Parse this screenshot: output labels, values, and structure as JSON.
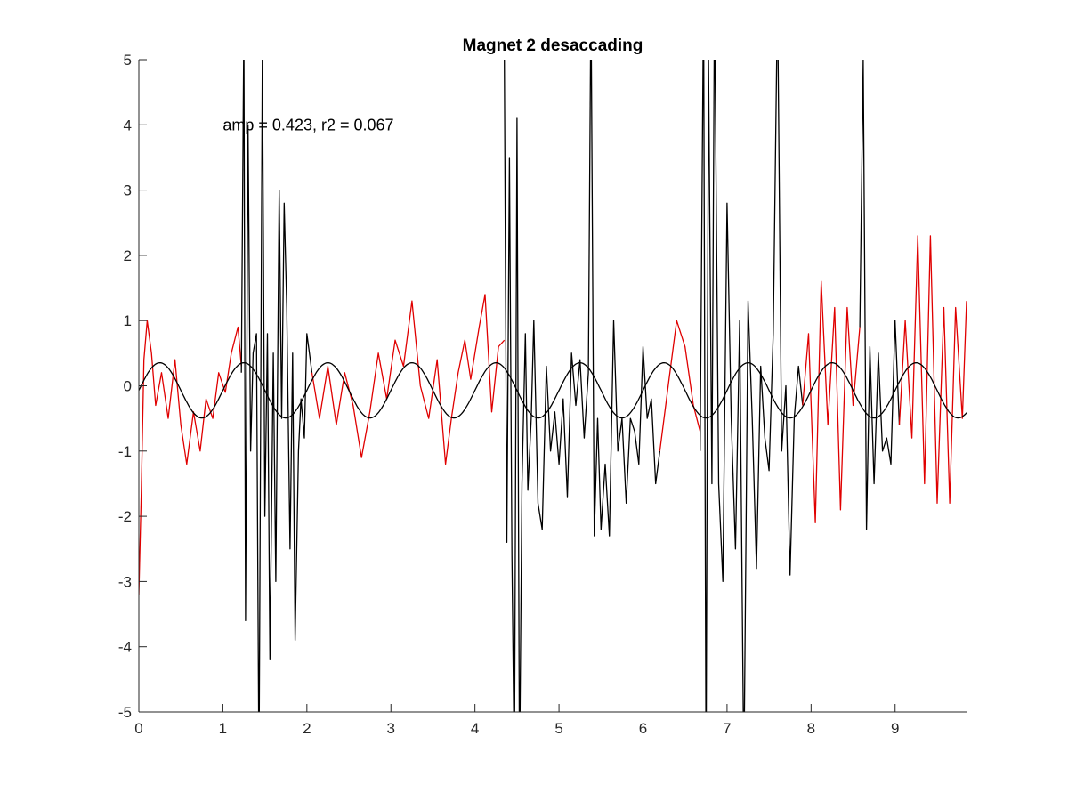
{
  "chart_data": {
    "type": "line",
    "title": "Magnet 2 desaccading",
    "xlabel": "",
    "ylabel": "",
    "xlim": [
      0,
      9.85
    ],
    "ylim": [
      -5,
      5
    ],
    "xticks": [
      "0",
      "1",
      "2",
      "3",
      "4",
      "5",
      "6",
      "7",
      "8",
      "9"
    ],
    "yticks": [
      "-5",
      "-4",
      "-3",
      "-2",
      "-1",
      "0",
      "1",
      "2",
      "3",
      "4",
      "5"
    ],
    "grid": false,
    "annotation": {
      "text": "amp = 0.423, r2 = 0.067",
      "x": 1.0,
      "y": 4.0
    },
    "colors": {
      "red": "#e00000",
      "black": "#000000",
      "fit": "#000000",
      "axis": "#262626"
    },
    "fit": {
      "amplitude": 0.423,
      "offset": -0.07,
      "period": 1.0,
      "phase": 0.0
    },
    "series": [
      {
        "color": "#e00000",
        "x": [
          0.0,
          0.03,
          0.06,
          0.1,
          0.15,
          0.2,
          0.27,
          0.35,
          0.43,
          0.5,
          0.57,
          0.65,
          0.73,
          0.8,
          0.88,
          0.95,
          1.03,
          1.1,
          1.18,
          1.22
        ],
        "y": [
          -3.2,
          -1.6,
          0.4,
          1.0,
          0.5,
          -0.3,
          0.2,
          -0.5,
          0.4,
          -0.6,
          -1.2,
          -0.4,
          -1.0,
          -0.2,
          -0.5,
          0.2,
          -0.1,
          0.5,
          0.9,
          0.3
        ]
      },
      {
        "color": "#000000",
        "x": [
          1.22,
          1.25,
          1.27,
          1.3,
          1.33,
          1.36,
          1.4,
          1.43,
          1.47,
          1.5,
          1.53,
          1.56,
          1.6,
          1.63,
          1.67,
          1.7,
          1.73,
          1.76,
          1.8,
          1.83,
          1.86,
          1.9,
          1.93,
          1.97,
          2.0,
          2.03,
          2.06
        ],
        "y": [
          0.2,
          5.5,
          -3.6,
          4.0,
          -1.0,
          0.5,
          0.8,
          -6.0,
          5.2,
          -2.0,
          0.8,
          -4.2,
          0.5,
          -3.0,
          3.0,
          -0.5,
          2.8,
          1.2,
          -2.5,
          0.5,
          -3.9,
          -1.0,
          -0.2,
          -0.8,
          0.8,
          0.5,
          0.2
        ]
      },
      {
        "color": "#e00000",
        "x": [
          2.06,
          2.15,
          2.25,
          2.35,
          2.45,
          2.55,
          2.65,
          2.75,
          2.85,
          2.95,
          3.05,
          3.15,
          3.25,
          3.35,
          3.45,
          3.55,
          3.65,
          3.72,
          3.8,
          3.88,
          3.95,
          4.05,
          4.12,
          4.2,
          4.28,
          4.35
        ],
        "y": [
          0.2,
          -0.5,
          0.3,
          -0.6,
          0.2,
          -0.3,
          -1.1,
          -0.4,
          0.5,
          -0.2,
          0.7,
          0.3,
          1.3,
          0.0,
          -0.5,
          0.4,
          -1.2,
          -0.5,
          0.2,
          0.7,
          0.1,
          0.9,
          1.4,
          -0.4,
          0.6,
          0.7
        ]
      },
      {
        "color": "#000000",
        "x": [
          4.35,
          4.38,
          4.41,
          4.44,
          4.47,
          4.5,
          4.53,
          4.56,
          4.6,
          4.63,
          4.67,
          4.7,
          4.75,
          4.8,
          4.85,
          4.9,
          4.95,
          5.0,
          5.05,
          5.1,
          5.15,
          5.2,
          5.25,
          5.3,
          5.35,
          5.38,
          5.42,
          5.46,
          5.5,
          5.55,
          5.6,
          5.65,
          5.7,
          5.75,
          5.8,
          5.85,
          5.9,
          5.95,
          6.0,
          6.05,
          6.1,
          6.15,
          6.2
        ],
        "y": [
          5.0,
          -2.4,
          3.5,
          -2.6,
          -6.0,
          4.1,
          -6.0,
          -1.5,
          0.8,
          -1.6,
          -0.5,
          1.0,
          -1.8,
          -2.2,
          0.3,
          -1.0,
          -0.4,
          -1.2,
          -0.2,
          -1.7,
          0.5,
          -0.3,
          0.4,
          -0.8,
          0.2,
          6.0,
          -2.3,
          -0.5,
          -2.2,
          -1.2,
          -2.3,
          1.0,
          -1.0,
          -0.5,
          -1.8,
          -0.5,
          -0.7,
          -1.2,
          0.6,
          -0.5,
          -0.2,
          -1.5,
          -1.0
        ]
      },
      {
        "color": "#e00000",
        "x": [
          6.2,
          6.3,
          6.4,
          6.5,
          6.6,
          6.68
        ],
        "y": [
          -1.0,
          0.0,
          1.0,
          0.6,
          -0.3,
          -0.7
        ]
      },
      {
        "color": "#000000",
        "x": [
          6.68,
          6.72,
          6.75,
          6.78,
          6.82,
          6.85,
          6.9,
          6.95,
          7.0,
          7.05,
          7.1,
          7.15,
          7.2,
          7.25,
          7.3,
          7.35,
          7.4,
          7.45,
          7.5,
          7.55,
          7.6,
          7.65,
          7.7,
          7.75,
          7.8,
          7.85,
          7.9
        ],
        "y": [
          -1.0,
          6.0,
          -6.0,
          5.0,
          -1.5,
          6.0,
          -1.5,
          -3.0,
          2.8,
          -0.5,
          -2.5,
          1.0,
          -6.0,
          1.3,
          -0.5,
          -2.8,
          0.3,
          -0.8,
          -1.3,
          0.8,
          6.0,
          -1.0,
          0.0,
          -2.9,
          -0.5,
          0.3,
          -0.3
        ]
      },
      {
        "color": "#e00000",
        "x": [
          7.9,
          7.97,
          8.05,
          8.12,
          8.2,
          8.28,
          8.35,
          8.43,
          8.5,
          8.58
        ],
        "y": [
          -0.3,
          0.8,
          -2.1,
          1.6,
          -0.6,
          1.2,
          -1.9,
          1.2,
          -0.3,
          0.9
        ]
      },
      {
        "color": "#000000",
        "x": [
          8.58,
          8.62,
          8.66,
          8.7,
          8.75,
          8.8,
          8.85,
          8.9,
          8.95,
          9.0,
          9.05
        ],
        "y": [
          0.9,
          5.0,
          -2.2,
          0.6,
          -1.5,
          0.5,
          -1.0,
          -0.8,
          -1.2,
          1.0,
          -0.6
        ]
      },
      {
        "color": "#e00000",
        "x": [
          9.05,
          9.12,
          9.2,
          9.27,
          9.35,
          9.42,
          9.5,
          9.58,
          9.65,
          9.72,
          9.8,
          9.85
        ],
        "y": [
          -0.6,
          1.0,
          -0.8,
          2.3,
          -1.5,
          2.3,
          -1.8,
          1.2,
          -1.8,
          1.2,
          -0.5,
          1.3
        ]
      }
    ]
  }
}
